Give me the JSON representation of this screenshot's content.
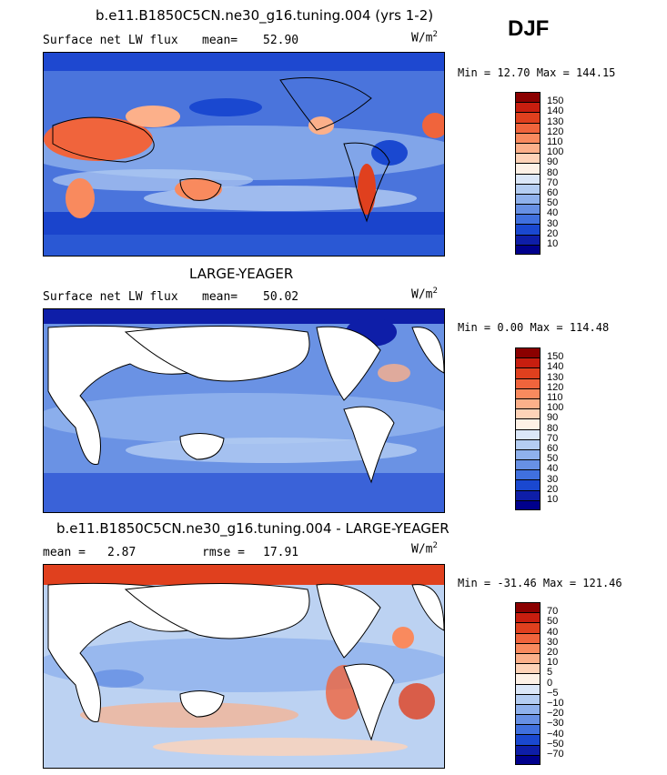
{
  "season": "DJF",
  "panels": [
    {
      "title": "b.e11.B1850C5CN.ne30_g16.tuning.004 (yrs 1-2)",
      "variable": "Surface net LW flux",
      "stat_label": "mean=",
      "stat_value": "52.90",
      "units": "W/m",
      "units_sup": "2",
      "minmax": "Min =  12.70 Max = 144.15"
    },
    {
      "title": "LARGE-YEAGER",
      "variable": "Surface net LW flux",
      "stat_label": "mean=",
      "stat_value": "50.02",
      "units": "W/m",
      "units_sup": "2",
      "minmax": "Min =   0.00 Max = 114.48"
    },
    {
      "title": "b.e11.B1850C5CN.ne30_g16.tuning.004 - LARGE-YEAGER",
      "stat_label": "mean =",
      "stat_value": "2.87",
      "rmse_label": "rmse =",
      "rmse_value": "17.91",
      "units": "W/m",
      "units_sup": "2",
      "minmax": "Min = -31.46 Max = 121.46"
    }
  ],
  "colorbar_abs": {
    "labels": [
      "150",
      "140",
      "130",
      "120",
      "110",
      "100",
      "90",
      "80",
      "70",
      "60",
      "50",
      "40",
      "30",
      "20",
      "10"
    ],
    "colors": [
      "#8b0000",
      "#c81e0f",
      "#e0401e",
      "#f0643c",
      "#f98a5e",
      "#fcb08a",
      "#fed3b8",
      "#fdf1e6",
      "#dbe7f8",
      "#b4cdf2",
      "#8fb1ec",
      "#6790e4",
      "#4070de",
      "#1a48d0",
      "#0e1ea8",
      "#00008c"
    ]
  },
  "colorbar_diff": {
    "labels": [
      "70",
      "50",
      "40",
      "30",
      "20",
      "10",
      "5",
      "0",
      "−5",
      "−10",
      "−20",
      "−30",
      "−40",
      "−50",
      "−70"
    ],
    "colors": [
      "#8b0000",
      "#c81e0f",
      "#e0401e",
      "#f0643c",
      "#f98a5e",
      "#fcb08a",
      "#fed3b8",
      "#fdf1e6",
      "#dbe7f8",
      "#b4cdf2",
      "#8fb1ec",
      "#6790e4",
      "#4070de",
      "#1a48d0",
      "#0e1ea8",
      "#00008c"
    ]
  }
}
